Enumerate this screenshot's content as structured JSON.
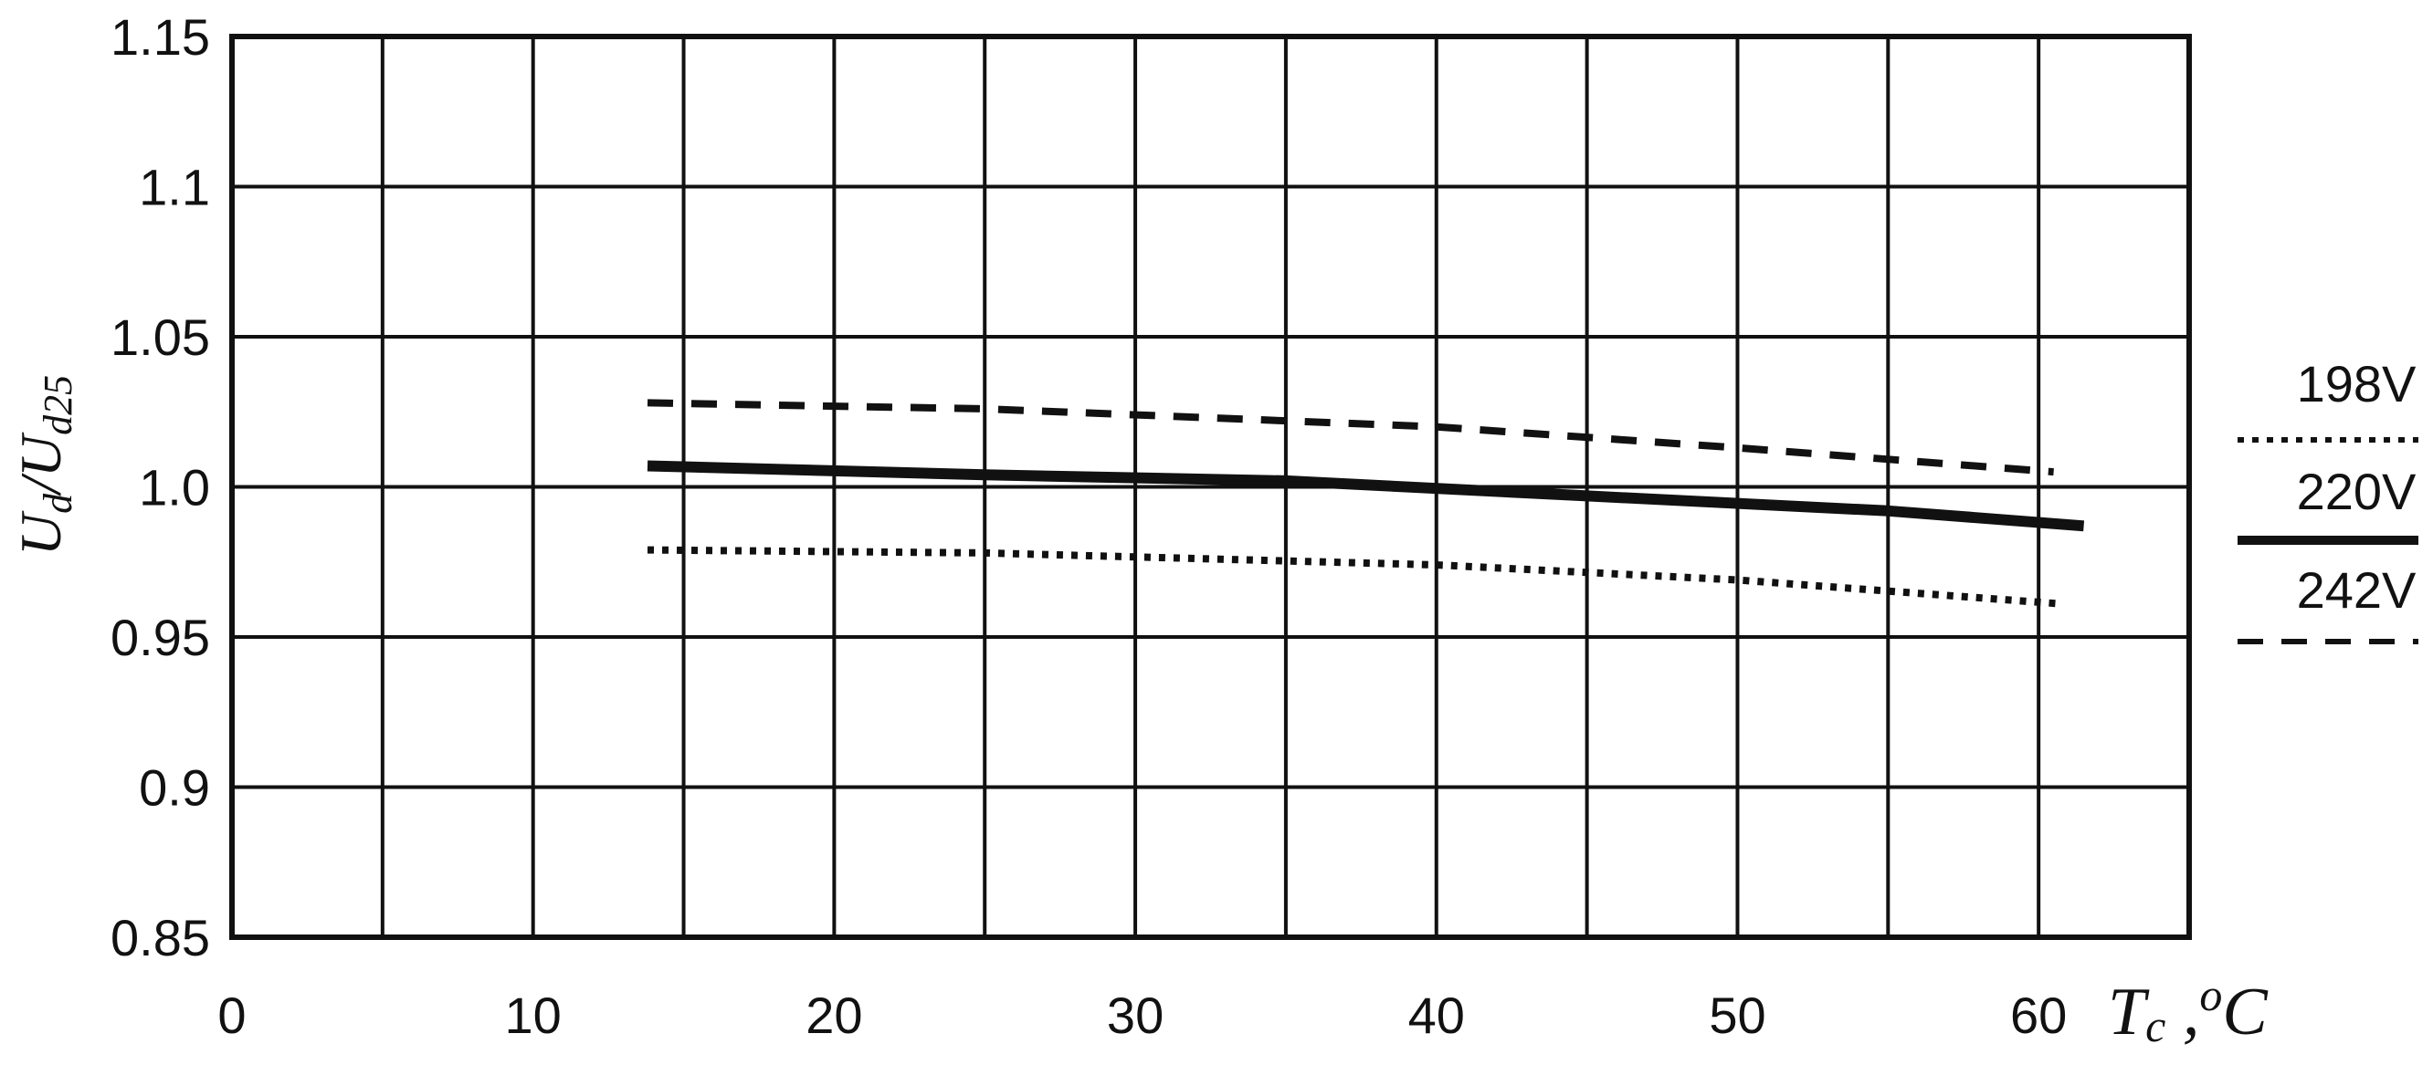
{
  "chart_data": {
    "type": "line",
    "xlabel": {
      "main": "T",
      "sub": "c",
      "suffix": " ,",
      "unit_sup": "o",
      "unit": "C"
    },
    "ylabel": {
      "num": "U",
      "num_sub": "d",
      "sep": "/",
      "den": "U",
      "den_sub": "d25"
    },
    "xlim": [
      0,
      65
    ],
    "ylim": [
      0.85,
      1.15
    ],
    "x_ticks": [
      0,
      10,
      20,
      30,
      40,
      50,
      60
    ],
    "x_tick_labels": [
      "0",
      "10",
      "20",
      "30",
      "40",
      "50",
      "60"
    ],
    "x_grid": [
      0,
      5,
      10,
      15,
      20,
      25,
      30,
      35,
      40,
      45,
      50,
      55,
      60,
      65
    ],
    "y_ticks": [
      0.85,
      0.9,
      0.95,
      1.0,
      1.05,
      1.1,
      1.15
    ],
    "y_tick_labels": [
      "0.85",
      "0.9",
      "0.95",
      "1.0",
      "1.05",
      "1.1",
      "1.15"
    ],
    "grid": true,
    "legend_position": "right",
    "series": [
      {
        "name": "198V",
        "style": "dotted",
        "color": "#111111",
        "x": [
          13.8,
          25,
          40,
          50,
          60.8
        ],
        "y": [
          0.979,
          0.978,
          0.974,
          0.969,
          0.961
        ]
      },
      {
        "name": "220V",
        "style": "solid",
        "color": "#111111",
        "x": [
          13.8,
          25,
          35,
          45,
          55,
          61.5
        ],
        "y": [
          1.007,
          1.004,
          1.002,
          0.997,
          0.992,
          0.987
        ]
      },
      {
        "name": "242V",
        "style": "dashed",
        "color": "#111111",
        "x": [
          13.8,
          25,
          40,
          50,
          60.5
        ],
        "y": [
          1.028,
          1.026,
          1.02,
          1.013,
          1.005
        ]
      }
    ]
  }
}
